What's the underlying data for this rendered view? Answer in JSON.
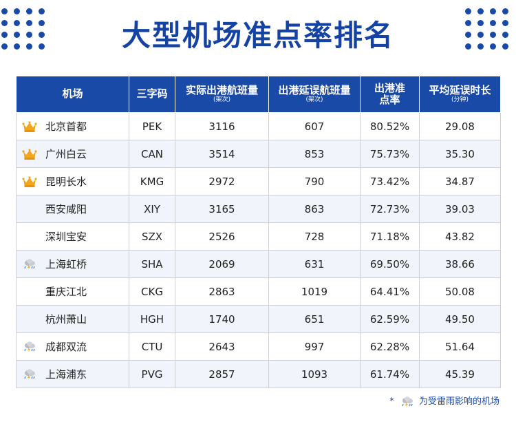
{
  "title": "大型机场准点率排名",
  "colors": {
    "brand": "#1a4aa8",
    "crown": "#f2a71b",
    "rain": "#4a8fe0"
  },
  "columns": [
    {
      "label": "机场",
      "sub": ""
    },
    {
      "label": "三字码",
      "sub": ""
    },
    {
      "label": "实际出港航班量",
      "sub": "(架次)"
    },
    {
      "label": "出港延误航班量",
      "sub": "(架次)"
    },
    {
      "label": "出港准点率",
      "sub": ""
    },
    {
      "label": "平均延误时长",
      "sub": "(分钟)"
    }
  ],
  "rows": [
    {
      "icon": "crown-icon",
      "name": "北京首都",
      "code": "PEK",
      "flights": "3116",
      "delayed": "607",
      "rate": "80.52%",
      "avg": "29.08"
    },
    {
      "icon": "crown-icon",
      "name": "广州白云",
      "code": "CAN",
      "flights": "3514",
      "delayed": "853",
      "rate": "75.73%",
      "avg": "35.30"
    },
    {
      "icon": "crown-icon",
      "name": "昆明长水",
      "code": "KMG",
      "flights": "2972",
      "delayed": "790",
      "rate": "73.42%",
      "avg": "34.87"
    },
    {
      "icon": "",
      "name": "西安咸阳",
      "code": "XIY",
      "flights": "3165",
      "delayed": "863",
      "rate": "72.73%",
      "avg": "39.03"
    },
    {
      "icon": "",
      "name": "深圳宝安",
      "code": "SZX",
      "flights": "2526",
      "delayed": "728",
      "rate": "71.18%",
      "avg": "43.82"
    },
    {
      "icon": "thunderstorm-icon",
      "name": "上海虹桥",
      "code": "SHA",
      "flights": "2069",
      "delayed": "631",
      "rate": "69.50%",
      "avg": "38.66"
    },
    {
      "icon": "",
      "name": "重庆江北",
      "code": "CKG",
      "flights": "2863",
      "delayed": "1019",
      "rate": "64.41%",
      "avg": "50.08"
    },
    {
      "icon": "",
      "name": "杭州萧山",
      "code": "HGH",
      "flights": "1740",
      "delayed": "651",
      "rate": "62.59%",
      "avg": "49.50"
    },
    {
      "icon": "thunderstorm-icon",
      "name": "成都双流",
      "code": "CTU",
      "flights": "2643",
      "delayed": "997",
      "rate": "62.28%",
      "avg": "51.64"
    },
    {
      "icon": "thunderstorm-icon",
      "name": "上海浦东",
      "code": "PVG",
      "flights": "2857",
      "delayed": "1093",
      "rate": "61.74%",
      "avg": "45.39"
    }
  ],
  "footnote": {
    "star": "*",
    "text": "为受雷雨影响的机场",
    "icon": "thunderstorm-icon"
  }
}
